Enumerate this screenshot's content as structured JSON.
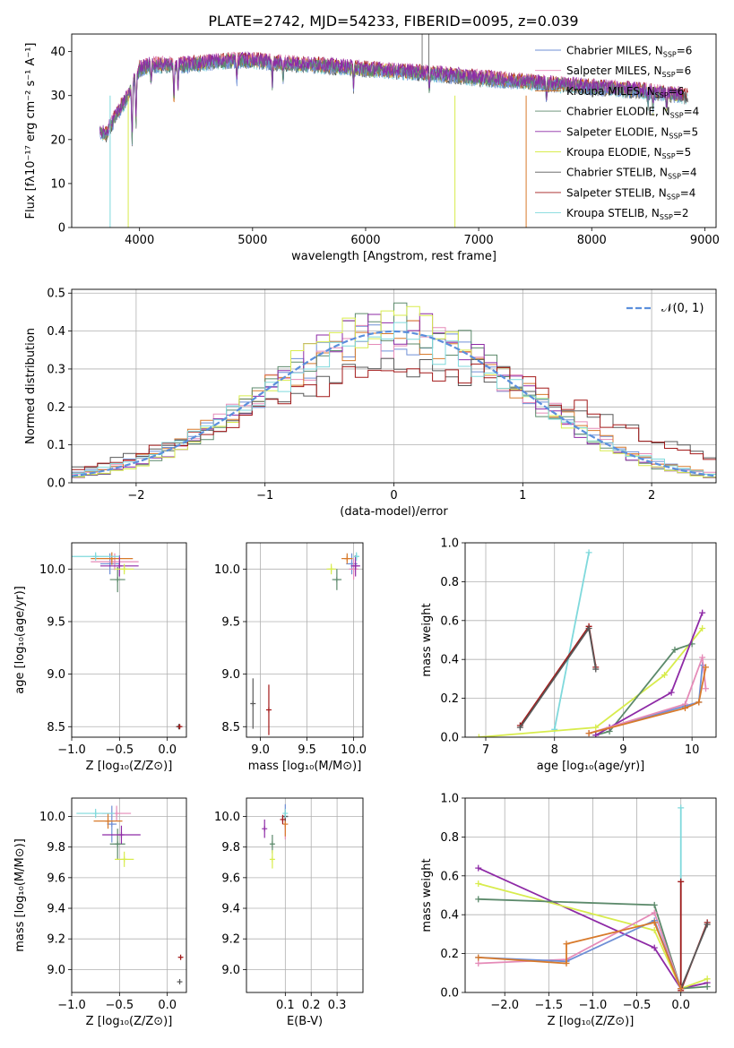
{
  "title": "PLATE=2742, MJD=54233, FIBERID=0095, z=0.039",
  "colors": {
    "Chabrier MILES": "#6f8fd6",
    "Salpeter MILES": "#e58bb8",
    "Kroupa MILES": "#d87a2b",
    "Chabrier ELODIE": "#5c8a6b",
    "Salpeter ELODIE": "#8e2aa6",
    "Kroupa ELODIE": "#d8ec4d",
    "Chabrier STELIB": "#595959",
    "Salpeter STELIB": "#a31919",
    "Kroupa STELIB": "#7fd9dc"
  },
  "legend": {
    "spectrum": [
      {
        "name": "Chabrier MILES",
        "n": "6"
      },
      {
        "name": "Salpeter MILES",
        "n": "6"
      },
      {
        "name": "Kroupa MILES",
        "n": "6"
      },
      {
        "name": "Chabrier ELODIE",
        "n": "4"
      },
      {
        "name": "Salpeter ELODIE",
        "n": "5"
      },
      {
        "name": "Kroupa ELODIE",
        "n": "5"
      },
      {
        "name": "Chabrier STELIB",
        "n": "4"
      },
      {
        "name": "Salpeter STELIB",
        "n": "4"
      },
      {
        "name": "Kroupa STELIB",
        "n": "2"
      }
    ],
    "nssp_label": "N",
    "nssp_sub": "SSP",
    "normal": "𝒩(0, 1)"
  },
  "chart_data": [
    {
      "id": "spectrum",
      "type": "line",
      "xlabel": "wavelength [Angstrom, rest frame]",
      "ylabel": "Flux [fλ10⁻¹⁷ erg cm⁻² s⁻¹ A⁻¹]",
      "xlim": [
        3400,
        9100
      ],
      "ylim": [
        0,
        44
      ],
      "xticks": [
        4000,
        5000,
        6000,
        7000,
        8000,
        9000
      ],
      "yticks": [
        0,
        10,
        20,
        30,
        40
      ],
      "continuum": [
        [
          3650,
          22
        ],
        [
          3700,
          21
        ],
        [
          3800,
          26
        ],
        [
          3900,
          30
        ],
        [
          4000,
          36
        ],
        [
          4100,
          37
        ],
        [
          4200,
          37
        ],
        [
          4400,
          37
        ],
        [
          4600,
          37.5
        ],
        [
          4800,
          38
        ],
        [
          5000,
          38
        ],
        [
          5200,
          37.5
        ],
        [
          5500,
          37
        ],
        [
          5800,
          36.5
        ],
        [
          6000,
          36
        ],
        [
          6300,
          35.5
        ],
        [
          6600,
          35
        ],
        [
          7000,
          34
        ],
        [
          7500,
          33
        ],
        [
          8000,
          32
        ],
        [
          8500,
          31
        ],
        [
          8800,
          30
        ]
      ],
      "absorption_lines": [
        [
          3934,
          12
        ],
        [
          3969,
          10
        ],
        [
          4102,
          4
        ],
        [
          4304,
          8
        ],
        [
          4340,
          5
        ],
        [
          4861,
          4
        ],
        [
          5175,
          5
        ],
        [
          5270,
          3
        ],
        [
          5893,
          4
        ],
        [
          6563,
          3
        ],
        [
          7600,
          3
        ],
        [
          8498,
          3
        ],
        [
          8542,
          4
        ],
        [
          8662,
          3
        ]
      ]
    },
    {
      "id": "residuals",
      "type": "line",
      "xlabel": "(data-model)/error",
      "ylabel": "Normed distribution",
      "xlim": [
        -2.5,
        2.5
      ],
      "ylim": [
        0,
        0.51
      ],
      "xticks": [
        -2,
        -1,
        0,
        1,
        2
      ],
      "yticks": [
        0.0,
        0.1,
        0.2,
        0.3,
        0.4,
        0.5
      ],
      "normal_mean": 0,
      "normal_sigma": 1
    },
    {
      "id": "age_vs_Z",
      "type": "scatter",
      "xlabel": "Z [log₁₀(Z/Z⊙)]",
      "ylabel": "age  [log₁₀(age/yr)]",
      "xlim": [
        -1.0,
        0.2
      ],
      "ylim": [
        8.4,
        10.25
      ],
      "xticks": [
        -1.0,
        -0.5,
        0.0
      ],
      "yticks": [
        8.5,
        9.0,
        9.5,
        10.0
      ],
      "points": [
        {
          "s": "Chabrier MILES",
          "x": -0.6,
          "y": 10.05,
          "xe": 0.1,
          "ye": 0.1
        },
        {
          "s": "Salpeter MILES",
          "x": -0.55,
          "y": 10.07,
          "xe": 0.25,
          "ye": 0.08
        },
        {
          "s": "Kroupa MILES",
          "x": -0.58,
          "y": 10.1,
          "xe": 0.22,
          "ye": 0.06
        },
        {
          "s": "Chabrier ELODIE",
          "x": -0.52,
          "y": 9.9,
          "xe": 0.08,
          "ye": 0.12
        },
        {
          "s": "Salpeter ELODIE",
          "x": -0.5,
          "y": 10.03,
          "xe": 0.2,
          "ye": 0.1
        },
        {
          "s": "Kroupa ELODIE",
          "x": -0.45,
          "y": 10.0,
          "xe": 0.1,
          "ye": 0.05
        },
        {
          "s": "Chabrier STELIB",
          "x": 0.12,
          "y": 8.5,
          "xe": 0.01,
          "ye": 0.02
        },
        {
          "s": "Salpeter STELIB",
          "x": 0.13,
          "y": 8.5,
          "xe": 0.01,
          "ye": 0.02
        },
        {
          "s": "Kroupa STELIB",
          "x": -0.75,
          "y": 10.12,
          "xe": 0.25,
          "ye": 0.04
        }
      ]
    },
    {
      "id": "age_vs_mass",
      "type": "scatter",
      "xlabel": "mass [log₁₀(M/M⊙)]",
      "ylabel": "",
      "xlim": [
        8.85,
        10.1
      ],
      "ylim": [
        8.4,
        10.25
      ],
      "xticks": [
        9.0,
        9.5,
        10.0
      ],
      "yticks": [
        8.5,
        9.0,
        9.5,
        10.0
      ],
      "points": [
        {
          "s": "Chabrier MILES",
          "x": 9.98,
          "y": 10.05,
          "xe": 0.06,
          "ye": 0.1
        },
        {
          "s": "Salpeter MILES",
          "x": 10.0,
          "y": 10.0,
          "xe": 0.05,
          "ye": 0.1
        },
        {
          "s": "Kroupa MILES",
          "x": 9.93,
          "y": 10.1,
          "xe": 0.06,
          "ye": 0.05
        },
        {
          "s": "Chabrier ELODIE",
          "x": 9.82,
          "y": 9.9,
          "xe": 0.05,
          "ye": 0.1
        },
        {
          "s": "Salpeter ELODIE",
          "x": 10.02,
          "y": 10.03,
          "xe": 0.05,
          "ye": 0.1
        },
        {
          "s": "Kroupa ELODIE",
          "x": 9.76,
          "y": 10.0,
          "xe": 0.05,
          "ye": 0.05
        },
        {
          "s": "Chabrier STELIB",
          "x": 8.92,
          "y": 8.72,
          "xe": 0.0,
          "ye": 0.24
        },
        {
          "s": "Salpeter STELIB",
          "x": 9.09,
          "y": 8.66,
          "xe": 0.0,
          "ye": 0.24
        },
        {
          "s": "Kroupa STELIB",
          "x": 10.03,
          "y": 10.12,
          "xe": 0.03,
          "ye": 0.04
        }
      ]
    },
    {
      "id": "weight_vs_age",
      "type": "line",
      "xlabel": "age  [log₁₀(age/yr)]",
      "ylabel": "mass weight",
      "xlim": [
        6.7,
        10.35
      ],
      "ylim": [
        0,
        1.0
      ],
      "xticks": [
        7,
        8,
        9,
        10
      ],
      "yticks": [
        0.0,
        0.2,
        0.4,
        0.6,
        0.8,
        1.0
      ],
      "series": [
        {
          "s": "Kroupa STELIB",
          "x": [
            8.0,
            8.5
          ],
          "y": [
            0.04,
            0.95
          ]
        },
        {
          "s": "Salpeter STELIB",
          "x": [
            7.5,
            8.5,
            8.6
          ],
          "y": [
            0.06,
            0.57,
            0.36
          ]
        },
        {
          "s": "Chabrier STELIB",
          "x": [
            7.5,
            8.5,
            8.6
          ],
          "y": [
            0.05,
            0.56,
            0.35
          ]
        },
        {
          "s": "Kroupa ELODIE",
          "x": [
            6.9,
            8.6,
            9.6,
            10.15
          ],
          "y": [
            0.0,
            0.05,
            0.32,
            0.56
          ]
        },
        {
          "s": "Chabrier ELODIE",
          "x": [
            8.6,
            8.8,
            9.75,
            10.0
          ],
          "y": [
            0.01,
            0.03,
            0.45,
            0.48
          ]
        },
        {
          "s": "Salpeter ELODIE",
          "x": [
            8.6,
            8.8,
            9.7,
            10.15
          ],
          "y": [
            0.01,
            0.05,
            0.23,
            0.64
          ]
        },
        {
          "s": "Chabrier MILES",
          "x": [
            8.5,
            9.9,
            10.1,
            10.15
          ],
          "y": [
            0.02,
            0.16,
            0.18,
            0.37
          ]
        },
        {
          "s": "Salpeter MILES",
          "x": [
            8.5,
            9.9,
            10.15,
            10.2
          ],
          "y": [
            0.02,
            0.17,
            0.41,
            0.25
          ]
        },
        {
          "s": "Kroupa MILES",
          "x": [
            8.5,
            9.9,
            10.1,
            10.2
          ],
          "y": [
            0.02,
            0.15,
            0.18,
            0.36
          ]
        }
      ]
    },
    {
      "id": "mass_vs_Z",
      "type": "scatter",
      "xlabel": "Z [log₁₀(Z/Z⊙)]",
      "ylabel": "mass [log₁₀(M/M⊙)]",
      "xlim": [
        -1.0,
        0.2
      ],
      "ylim": [
        8.85,
        10.12
      ],
      "xticks": [
        -1.0,
        -0.5,
        0.0
      ],
      "yticks": [
        9.0,
        9.2,
        9.4,
        9.6,
        9.8,
        10.0
      ],
      "points": [
        {
          "s": "Chabrier MILES",
          "x": -0.58,
          "y": 9.95,
          "xe": 0.05,
          "ye": 0.12
        },
        {
          "s": "Salpeter MILES",
          "x": -0.53,
          "y": 10.02,
          "xe": 0.15,
          "ye": 0.05
        },
        {
          "s": "Kroupa MILES",
          "x": -0.62,
          "y": 9.97,
          "xe": 0.15,
          "ye": 0.05
        },
        {
          "s": "Chabrier ELODIE",
          "x": -0.52,
          "y": 9.82,
          "xe": 0.08,
          "ye": 0.1
        },
        {
          "s": "Salpeter ELODIE",
          "x": -0.48,
          "y": 9.88,
          "xe": 0.2,
          "ye": 0.06
        },
        {
          "s": "Kroupa ELODIE",
          "x": -0.45,
          "y": 9.72,
          "xe": 0.1,
          "ye": 0.05
        },
        {
          "s": "Chabrier STELIB",
          "x": 0.13,
          "y": 8.92,
          "xe": 0.02,
          "ye": 0.0
        },
        {
          "s": "Salpeter STELIB",
          "x": 0.14,
          "y": 9.08,
          "xe": 0.02,
          "ye": 0.0
        },
        {
          "s": "Kroupa STELIB",
          "x": -0.75,
          "y": 10.02,
          "xe": 0.2,
          "ye": 0.03
        }
      ]
    },
    {
      "id": "mass_vs_ebv",
      "type": "scatter",
      "xlabel": "E(B-V)",
      "ylabel": "",
      "xlim": [
        -0.05,
        0.4
      ],
      "ylim": [
        8.85,
        10.12
      ],
      "xticks": [
        0.1,
        0.2,
        0.3
      ],
      "yticks": [
        9.0,
        9.2,
        9.4,
        9.6,
        9.8,
        10.0
      ],
      "points": [
        {
          "s": "Chabrier MILES",
          "x": 0.1,
          "y": 10.0,
          "xe": 0.0,
          "ye": 0.08
        },
        {
          "s": "Salpeter MILES",
          "x": 0.1,
          "y": 9.95,
          "xe": 0.0,
          "ye": 0.1
        },
        {
          "s": "Kroupa MILES",
          "x": 0.1,
          "y": 9.95,
          "xe": 0.0,
          "ye": 0.08
        },
        {
          "s": "Chabrier ELODIE",
          "x": 0.05,
          "y": 9.82,
          "xe": 0.0,
          "ye": 0.06
        },
        {
          "s": "Salpeter ELODIE",
          "x": 0.02,
          "y": 9.92,
          "xe": 0.0,
          "ye": 0.06
        },
        {
          "s": "Kroupa ELODIE",
          "x": 0.05,
          "y": 9.72,
          "xe": 0.0,
          "ye": 0.06
        },
        {
          "s": "Chabrier STELIB",
          "x": 0.1,
          "y": 10.0,
          "xe": 0.0,
          "ye": 0.03
        },
        {
          "s": "Salpeter STELIB",
          "x": 0.09,
          "y": 9.98,
          "xe": 0.0,
          "ye": 0.03
        },
        {
          "s": "Kroupa STELIB",
          "x": 0.1,
          "y": 10.02,
          "xe": 0.0,
          "ye": 0.03
        }
      ]
    },
    {
      "id": "weight_vs_Z",
      "type": "line",
      "xlabel": "Z [log₁₀(Z/Z⊙)]",
      "ylabel": "mass weight",
      "xlim": [
        -2.45,
        0.4
      ],
      "ylim": [
        0,
        1.0
      ],
      "xticks": [
        -2.0,
        -1.5,
        -1.0,
        -0.5,
        0.0
      ],
      "yticks": [
        0.0,
        0.2,
        0.4,
        0.6,
        0.8,
        1.0
      ],
      "series": [
        {
          "s": "Kroupa STELIB",
          "x": [
            0.0,
            0.0
          ],
          "y": [
            0.04,
            0.95
          ]
        },
        {
          "s": "Salpeter ELODIE",
          "x": [
            -2.3,
            -0.3,
            0.0,
            0.3
          ],
          "y": [
            0.64,
            0.23,
            0.02,
            0.05
          ]
        },
        {
          "s": "Kroupa ELODIE",
          "x": [
            -2.3,
            -0.3,
            0.0,
            0.3
          ],
          "y": [
            0.56,
            0.32,
            0.02,
            0.07
          ]
        },
        {
          "s": "Chabrier ELODIE",
          "x": [
            -2.3,
            -0.3,
            0.0,
            0.3
          ],
          "y": [
            0.48,
            0.45,
            0.02,
            0.03
          ]
        },
        {
          "s": "Salpeter STELIB",
          "x": [
            0.0,
            0.0,
            0.3
          ],
          "y": [
            0.57,
            0.01,
            0.36
          ]
        },
        {
          "s": "Chabrier STELIB",
          "x": [
            0.0,
            0.3
          ],
          "y": [
            0.02,
            0.35
          ]
        },
        {
          "s": "Salpeter MILES",
          "x": [
            -2.3,
            -1.3,
            -0.3,
            0.0
          ],
          "y": [
            0.15,
            0.17,
            0.41,
            0.02
          ]
        },
        {
          "s": "Chabrier MILES",
          "x": [
            -2.3,
            -1.3,
            -0.3,
            0.0
          ],
          "y": [
            0.18,
            0.16,
            0.37,
            0.02
          ]
        },
        {
          "s": "Kroupa MILES",
          "x": [
            -2.3,
            -1.3,
            -1.3,
            -0.3,
            0.0
          ],
          "y": [
            0.18,
            0.15,
            0.25,
            0.36,
            0.02
          ]
        }
      ]
    }
  ]
}
